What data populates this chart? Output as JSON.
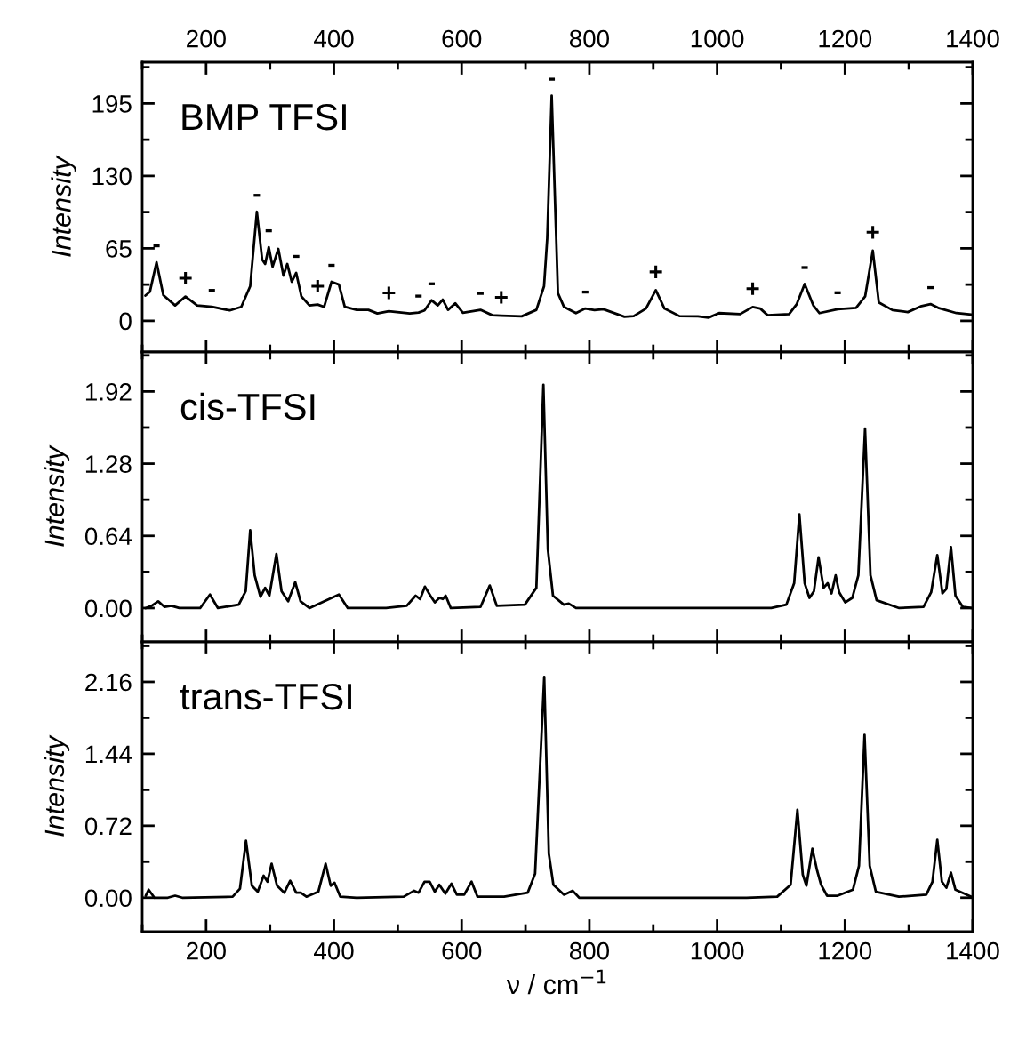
{
  "chart_data": [
    {
      "type": "line",
      "ylabel": "Intensity",
      "xlim": [
        100,
        1400
      ],
      "xticks": [
        200,
        400,
        600,
        800,
        1000,
        1200,
        1400
      ],
      "tick_labels": "y",
      "x2lim": [
        100,
        1400
      ],
      "x2ticks": [
        200,
        400,
        600,
        800,
        1000,
        1200,
        1400
      ],
      "ylim": [
        -28,
        232
      ],
      "yticks": [
        0,
        65,
        130,
        195
      ],
      "grid": false,
      "legend": false,
      "annotations": [
        "BMP TFSI",
        {
          "text": "-",
          "x": 122.4,
          "y": 52.5
        },
        {
          "text": "+",
          "x": 167.7,
          "y": 21.8
        },
        {
          "text": "-",
          "x": 209,
          "y": 12.5
        },
        {
          "text": "-",
          "x": 279.4,
          "y": 97.8
        },
        {
          "text": "-",
          "x": 298,
          "y": 66
        },
        {
          "text": "-",
          "x": 341,
          "y": 43
        },
        {
          "text": "+",
          "x": 374.6,
          "y": 14.6
        },
        {
          "text": "-",
          "x": 396.3,
          "y": 35
        },
        {
          "text": "+",
          "x": 486,
          "y": 8.6
        },
        {
          "text": "-",
          "x": 532.5,
          "y": 7.4
        },
        {
          "text": "-",
          "x": 553,
          "y": 18.4
        },
        {
          "text": "-",
          "x": 629.5,
          "y": 9.8
        },
        {
          "text": "+",
          "x": 662,
          "y": 4.6
        },
        {
          "text": "-",
          "x": 741,
          "y": 202
        },
        {
          "text": "-",
          "x": 793.6,
          "y": 11
        },
        {
          "text": "+",
          "x": 904,
          "y": 27.5
        },
        {
          "text": "+",
          "x": 1055.6,
          "y": 12.4
        },
        {
          "text": "-",
          "x": 1137,
          "y": 33
        },
        {
          "text": "-",
          "x": 1188.6,
          "y": 10.4
        },
        {
          "text": "+",
          "x": 1243.6,
          "y": 63
        },
        {
          "text": "-",
          "x": 1334,
          "y": 15
        }
      ],
      "series": [
        {
          "color": "#000000",
          "x": [
            105,
            112,
            122.4,
            133,
            151.5,
            167.7,
            186,
            209,
            237,
            255,
            269,
            279.4,
            287.7,
            292.4,
            298,
            304,
            313,
            321,
            327,
            334,
            341,
            349,
            361.7,
            374.6,
            384.7,
            396.3,
            407.8,
            417,
            435.6,
            454,
            468,
            486,
            518.7,
            532.5,
            541.8,
            553,
            562.6,
            570.4,
            578.7,
            590,
            602,
            629.5,
            648,
            662,
            694,
            717,
            729,
            734,
            741,
            750.8,
            760.3,
            779,
            793.6,
            808,
            822,
            855,
            869.4,
            888.6,
            904,
            917.5,
            941,
            970,
            986.4,
            1003,
            1036,
            1055.6,
            1067.5,
            1079,
            1112.6,
            1124.6,
            1137,
            1150.6,
            1160,
            1188.6,
            1217.4,
            1231.7,
            1243.6,
            1253,
            1274.5,
            1298.4,
            1320,
            1334,
            1346,
            1374.6,
            1398
          ],
          "values": [
            22.6,
            26,
            52.5,
            23,
            13.8,
            21.8,
            13.8,
            12.5,
            9.3,
            12.5,
            31,
            97.8,
            55,
            51,
            66,
            48.5,
            64.5,
            40.5,
            51,
            35,
            43,
            22,
            13.8,
            14.6,
            12.5,
            35,
            32.5,
            12.5,
            9.8,
            9.8,
            6.6,
            8.6,
            6.6,
            7.4,
            9.3,
            18.4,
            13.8,
            19,
            9.8,
            15.7,
            7.2,
            9.8,
            5,
            4.6,
            4,
            9.8,
            31,
            74,
            202,
            24.8,
            12.4,
            6.9,
            11,
            9.6,
            10.4,
            3.6,
            4.2,
            11,
            27.5,
            11,
            4.2,
            4,
            2.8,
            6.9,
            6,
            12.4,
            11,
            5,
            6,
            15,
            33,
            13.7,
            6.9,
            10.4,
            11.6,
            22,
            63,
            16.5,
            9.6,
            7.8,
            13.2,
            15,
            11.6,
            6.9,
            5.6
          ]
        }
      ]
    },
    {
      "type": "line",
      "ylabel": "Intensity",
      "xlim": [
        100,
        1400
      ],
      "xticks": [
        200,
        400,
        600,
        800,
        1000,
        1200,
        1400
      ],
      "ylim": [
        -0.3,
        2.27
      ],
      "yticks": [
        {
          "value": 0,
          "label": "0.00"
        },
        {
          "value": 0.64,
          "label": "0.64"
        },
        {
          "value": 1.28,
          "label": "1.28"
        },
        {
          "value": 1.92,
          "label": "1.92"
        }
      ],
      "tick_labels": "y",
      "grid": false,
      "legend": false,
      "annotations": [
        "cis-TFSI"
      ],
      "series": [
        {
          "color": "#000000",
          "x": [
            105.5,
            114.7,
            125,
            135,
            145.5,
            158,
            190.7,
            206,
            218.5,
            251,
            262,
            269,
            276,
            285,
            292.4,
            299,
            310,
            318,
            328.4,
            339.5,
            347.8,
            361.7,
            407.8,
            421.7,
            481.7,
            514,
            528,
            535,
            542.5,
            551,
            558,
            565,
            570.4,
            575,
            583,
            629.5,
            644,
            655,
            699,
            717,
            728,
            735,
            743,
            760,
            767.7,
            779,
            855,
            998,
            1084.7,
            1108.3,
            1120.5,
            1128.7,
            1137,
            1144.5,
            1151.5,
            1158.7,
            1166.6,
            1173,
            1179,
            1185.5,
            1191,
            1200.5,
            1211.5,
            1221,
            1231.5,
            1240,
            1249.6,
            1285,
            1323,
            1335,
            1344.6,
            1352.7,
            1358.8,
            1366,
            1373,
            1384.7,
            1398
          ],
          "values": [
            0,
            0.02,
            0.06,
            0.01,
            0.02,
            0,
            0,
            0.12,
            0,
            0.03,
            0.15,
            0.69,
            0.29,
            0.1,
            0.18,
            0.11,
            0.48,
            0.15,
            0.06,
            0.23,
            0.06,
            0,
            0.12,
            0,
            0,
            0.02,
            0.11,
            0.08,
            0.19,
            0.11,
            0.05,
            0.09,
            0.08,
            0.11,
            0,
            0.01,
            0.2,
            0.02,
            0.03,
            0.18,
            1.98,
            0.52,
            0.11,
            0.03,
            0.04,
            0,
            0,
            0,
            0,
            0.03,
            0.22,
            0.83,
            0.22,
            0.09,
            0.15,
            0.45,
            0.18,
            0.22,
            0.13,
            0.29,
            0.14,
            0.05,
            0.09,
            0.29,
            1.59,
            0.29,
            0.07,
            0,
            0.01,
            0.14,
            0.47,
            0.13,
            0.17,
            0.54,
            0.11,
            0.01,
            0
          ]
        }
      ]
    },
    {
      "type": "line",
      "ylabel": "Intensity",
      "xlabel": "ν / cm$^{−1}$",
      "xlim": [
        100,
        1400
      ],
      "xticks": [
        200,
        400,
        600,
        800,
        1000,
        1200,
        1400
      ],
      "ylim": [
        -0.34,
        2.56
      ],
      "yticks": [
        {
          "value": 0,
          "label": "0.00"
        },
        {
          "value": 0.72,
          "label": "0.72"
        },
        {
          "value": 1.44,
          "label": "1.44"
        },
        {
          "value": 2.16,
          "label": "2.16"
        }
      ],
      "grid": false,
      "legend": false,
      "annotations": [
        "trans-TFSI"
      ],
      "series": [
        {
          "color": "#000000",
          "x": [
            105.5,
            110,
            119,
            140,
            151.5,
            162.6,
            241.6,
            253,
            262.4,
            271.6,
            280.8,
            290,
            296,
            302.5,
            311,
            322.4,
            331.6,
            341,
            348,
            357,
            375.6,
            387,
            395,
            401,
            410,
            435.6,
            509.4,
            525.6,
            532.5,
            541.8,
            550,
            558,
            565,
            574.5,
            584,
            592.5,
            604,
            615.5,
            624.8,
            666.4,
            703.4,
            715,
            729.3,
            736.5,
            743.6,
            760.3,
            773.7,
            784,
            903,
            1046,
            1094,
            1115,
            1125.6,
            1134,
            1139.7,
            1149,
            1156.5,
            1162.6,
            1172,
            1188.6,
            1212.5,
            1222,
            1230.7,
            1238.8,
            1248.4,
            1284.5,
            1327.4,
            1337,
            1344.6,
            1351.8,
            1358.8,
            1366,
            1373,
            1398
          ],
          "values": [
            0.02,
            0.08,
            0,
            0,
            0.02,
            0,
            0.01,
            0.09,
            0.57,
            0.12,
            0.06,
            0.22,
            0.16,
            0.34,
            0.12,
            0.05,
            0.17,
            0.05,
            0.05,
            0.01,
            0.06,
            0.34,
            0.12,
            0.15,
            0.01,
            0,
            0.01,
            0.07,
            0.05,
            0.16,
            0.16,
            0.06,
            0.13,
            0.04,
            0.14,
            0.03,
            0.03,
            0.16,
            0.01,
            0.01,
            0.05,
            0.24,
            2.21,
            0.44,
            0.13,
            0.03,
            0.07,
            0,
            0,
            0,
            0.01,
            0.13,
            0.88,
            0.23,
            0.12,
            0.49,
            0.27,
            0.13,
            0.02,
            0.02,
            0.08,
            0.32,
            1.63,
            0.32,
            0.06,
            0.01,
            0.03,
            0.16,
            0.58,
            0.16,
            0.1,
            0.25,
            0.08,
            0.01
          ]
        }
      ]
    }
  ]
}
